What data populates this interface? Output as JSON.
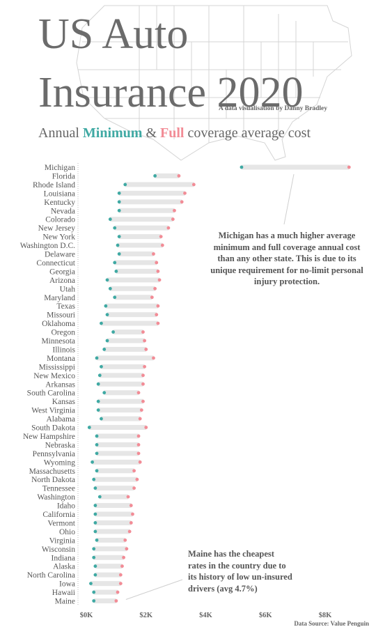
{
  "header": {
    "title_line1": "US Auto",
    "title_line2": "Insurance 2020",
    "byline": "A data visualisation by Danny Bradley",
    "subtitle_prefix": "Annual ",
    "subtitle_min": "Minimum",
    "subtitle_amp": " & ",
    "subtitle_full": "Full",
    "subtitle_suffix": " coverage average cost"
  },
  "annotations": {
    "michigan": "Michigan has a much higher average minimum and full coverage annual cost than any other state. This is due to its unique requirement for no-limit personal injury protection.",
    "maine": "Maine has the cheapest rates in the country due to its history of low un-insured drivers (avg 4.7%)"
  },
  "source": "Data Source: Value Penguin",
  "colors": {
    "minimum": "#3fa9a3",
    "full": "#f28c96",
    "bar": "#e6e6e6",
    "text": "#6b6b6b"
  },
  "chart_data": {
    "type": "dumbbell",
    "title": "Annual Minimum & Full coverage average cost",
    "xlabel": "",
    "ylabel": "",
    "xlim": [
      0,
      8500
    ],
    "xticks": [
      0,
      2000,
      4000,
      6000,
      8000
    ],
    "xtick_labels": [
      "$0K",
      "$2K",
      "$4K",
      "$6K",
      "$8K"
    ],
    "grid": false,
    "series": [
      {
        "name": "Minimum",
        "key": "min"
      },
      {
        "name": "Full",
        "key": "full"
      }
    ],
    "states": [
      {
        "name": "Michigan",
        "min": 5200,
        "full": 8800
      },
      {
        "name": "Florida",
        "min": 2300,
        "full": 3100
      },
      {
        "name": "Rhode Island",
        "min": 1300,
        "full": 3600
      },
      {
        "name": "Louisiana",
        "min": 1100,
        "full": 3300
      },
      {
        "name": "Kentucky",
        "min": 1100,
        "full": 3200
      },
      {
        "name": "Nevada",
        "min": 1100,
        "full": 2950
      },
      {
        "name": "Colorado",
        "min": 800,
        "full": 2900
      },
      {
        "name": "New Jersey",
        "min": 950,
        "full": 2750
      },
      {
        "name": "New York",
        "min": 1100,
        "full": 2500
      },
      {
        "name": "Washington D.C.",
        "min": 1050,
        "full": 2550
      },
      {
        "name": "Delaware",
        "min": 1100,
        "full": 2250
      },
      {
        "name": "Connecticut",
        "min": 950,
        "full": 2350
      },
      {
        "name": "Georgia",
        "min": 1000,
        "full": 2400
      },
      {
        "name": "Arizona",
        "min": 700,
        "full": 2450
      },
      {
        "name": "Utah",
        "min": 800,
        "full": 2300
      },
      {
        "name": "Maryland",
        "min": 950,
        "full": 2200
      },
      {
        "name": "Texas",
        "min": 650,
        "full": 2400
      },
      {
        "name": "Missouri",
        "min": 700,
        "full": 2350
      },
      {
        "name": "Oklahoma",
        "min": 500,
        "full": 2400
      },
      {
        "name": "Oregon",
        "min": 900,
        "full": 1900
      },
      {
        "name": "Minnesota",
        "min": 700,
        "full": 1950
      },
      {
        "name": "Illinois",
        "min": 600,
        "full": 2000
      },
      {
        "name": "Montana",
        "min": 350,
        "full": 2250
      },
      {
        "name": "Mississippi",
        "min": 500,
        "full": 1950
      },
      {
        "name": "New Mexico",
        "min": 450,
        "full": 1900
      },
      {
        "name": "Arkansas",
        "min": 400,
        "full": 1900
      },
      {
        "name": "South Carolina",
        "min": 600,
        "full": 1750
      },
      {
        "name": "Kansas",
        "min": 400,
        "full": 1900
      },
      {
        "name": "West Virginia",
        "min": 400,
        "full": 1850
      },
      {
        "name": "Alabama",
        "min": 500,
        "full": 1800
      },
      {
        "name": "South Dakota",
        "min": 100,
        "full": 2000
      },
      {
        "name": "New Hampshire",
        "min": 350,
        "full": 1750
      },
      {
        "name": "Nebraska",
        "min": 350,
        "full": 1750
      },
      {
        "name": "Pennsylvania",
        "min": 350,
        "full": 1750
      },
      {
        "name": "Wyoming",
        "min": 200,
        "full": 1800
      },
      {
        "name": "Massachusetts",
        "min": 350,
        "full": 1600
      },
      {
        "name": "North Dakota",
        "min": 250,
        "full": 1700
      },
      {
        "name": "Tennessee",
        "min": 300,
        "full": 1600
      },
      {
        "name": "Washington",
        "min": 450,
        "full": 1400
      },
      {
        "name": "Idaho",
        "min": 300,
        "full": 1500
      },
      {
        "name": "California",
        "min": 300,
        "full": 1550
      },
      {
        "name": "Vermont",
        "min": 300,
        "full": 1500
      },
      {
        "name": "Ohio",
        "min": 300,
        "full": 1450
      },
      {
        "name": "Virginia",
        "min": 350,
        "full": 1300
      },
      {
        "name": "Wisconsin",
        "min": 250,
        "full": 1350
      },
      {
        "name": "Indiana",
        "min": 250,
        "full": 1250
      },
      {
        "name": "Alaska",
        "min": 300,
        "full": 1200
      },
      {
        "name": "North Carolina",
        "min": 300,
        "full": 1150
      },
      {
        "name": "Iowa",
        "min": 150,
        "full": 1150
      },
      {
        "name": "Hawaii",
        "min": 250,
        "full": 1050
      },
      {
        "name": "Maine",
        "min": 250,
        "full": 1000
      }
    ]
  }
}
